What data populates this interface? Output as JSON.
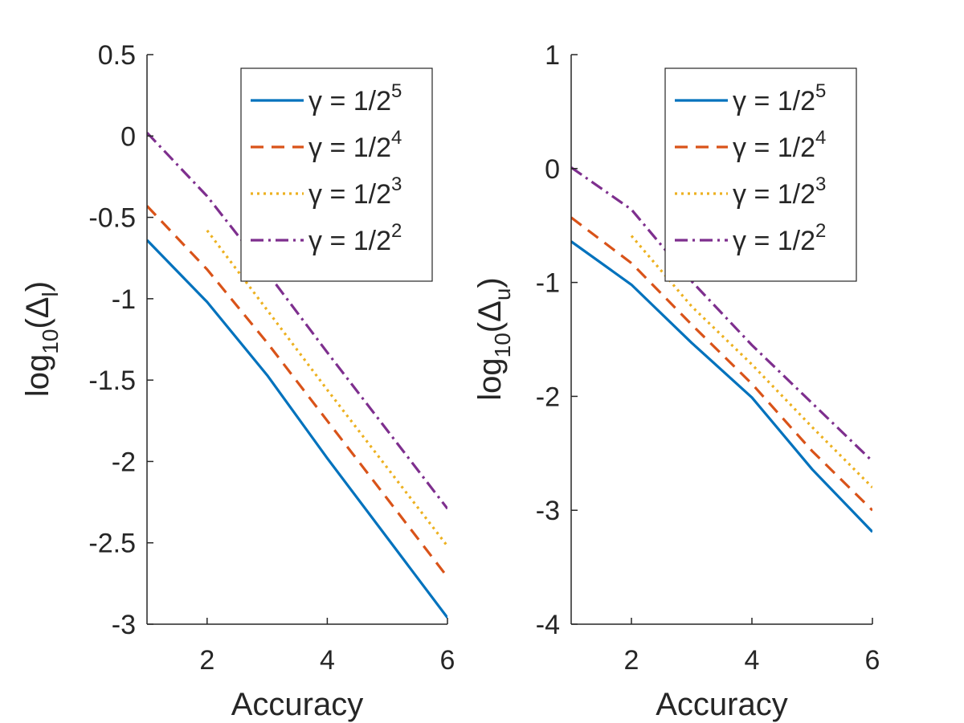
{
  "colors": {
    "series1": "#0072BD",
    "series2": "#D95319",
    "series3": "#EDB120",
    "series4": "#7E2F8E",
    "axis": "#262626",
    "background": "#ffffff"
  },
  "chart_data": [
    {
      "type": "line",
      "title": "",
      "xlabel": "Accuracy",
      "ylabel": {
        "base": "log",
        "sub": "10",
        "open": "(Δ",
        "sub2": "l",
        "close": ")"
      },
      "xlim": [
        1,
        6
      ],
      "ylim": [
        -3,
        0.5
      ],
      "xticks": [
        2,
        4,
        6
      ],
      "xtick_labels": [
        "2",
        "4",
        "6"
      ],
      "yticks": [
        0.5,
        0,
        -0.5,
        -1,
        -1.5,
        -2,
        -2.5,
        -3
      ],
      "ytick_labels": [
        "0.5",
        "0",
        "-0.5",
        "-1",
        "-1.5",
        "-2",
        "-2.5",
        "-3"
      ],
      "grid": false,
      "legend": {
        "placement": "top-right"
      },
      "series": [
        {
          "name": "γ = 1/2",
          "sup": "5",
          "style": "solid",
          "x": [
            1,
            2,
            3,
            4,
            5,
            6
          ],
          "values": [
            -0.64,
            -1.02,
            -1.47,
            -1.98,
            -2.47,
            -2.96
          ]
        },
        {
          "name": "γ = 1/2",
          "sup": "4",
          "style": "dashed",
          "x": [
            1,
            2,
            3,
            4,
            5,
            6
          ],
          "values": [
            -0.43,
            -0.82,
            -1.27,
            -1.75,
            -2.23,
            -2.71
          ]
        },
        {
          "name": "γ = 1/2",
          "sup": "3",
          "style": "dotted",
          "x": [
            2,
            3,
            4,
            5,
            6
          ],
          "values": [
            -0.58,
            -1.07,
            -1.56,
            -2.04,
            -2.52
          ]
        },
        {
          "name": "γ = 1/2",
          "sup": "2",
          "style": "dashdot",
          "x": [
            1,
            2,
            3,
            4,
            5,
            6
          ],
          "values": [
            0.02,
            -0.37,
            -0.84,
            -1.33,
            -1.81,
            -2.29
          ]
        }
      ]
    },
    {
      "type": "line",
      "title": "",
      "xlabel": "Accuracy",
      "ylabel": {
        "base": "log",
        "sub": "10",
        "open": "(Δ",
        "sub2": "u",
        "close": ")"
      },
      "xlim": [
        1,
        6
      ],
      "ylim": [
        -4,
        1
      ],
      "xticks": [
        2,
        4,
        6
      ],
      "xtick_labels": [
        "2",
        "4",
        "6"
      ],
      "yticks": [
        1,
        0,
        -1,
        -2,
        -3,
        -4
      ],
      "ytick_labels": [
        "1",
        "0",
        "-1",
        "-2",
        "-3",
        "-4"
      ],
      "grid": false,
      "legend": {
        "placement": "top-right"
      },
      "series": [
        {
          "name": "γ = 1/2",
          "sup": "5",
          "style": "solid",
          "x": [
            1,
            2,
            3,
            4,
            5,
            6
          ],
          "values": [
            -0.64,
            -1.02,
            -1.53,
            -2.01,
            -2.64,
            -3.19
          ]
        },
        {
          "name": "γ = 1/2",
          "sup": "4",
          "style": "dashed",
          "x": [
            1,
            2,
            3,
            4,
            5,
            6
          ],
          "values": [
            -0.43,
            -0.83,
            -1.37,
            -1.89,
            -2.48,
            -3.0
          ]
        },
        {
          "name": "γ = 1/2",
          "sup": "3",
          "style": "dotted",
          "x": [
            2,
            3,
            4,
            5,
            6
          ],
          "values": [
            -0.59,
            -1.21,
            -1.72,
            -2.27,
            -2.8
          ]
        },
        {
          "name": "γ = 1/2",
          "sup": "2",
          "style": "dashdot",
          "x": [
            1,
            2,
            3,
            4,
            5,
            6
          ],
          "values": [
            0.01,
            -0.36,
            -0.99,
            -1.55,
            -2.06,
            -2.57
          ]
        }
      ]
    }
  ]
}
